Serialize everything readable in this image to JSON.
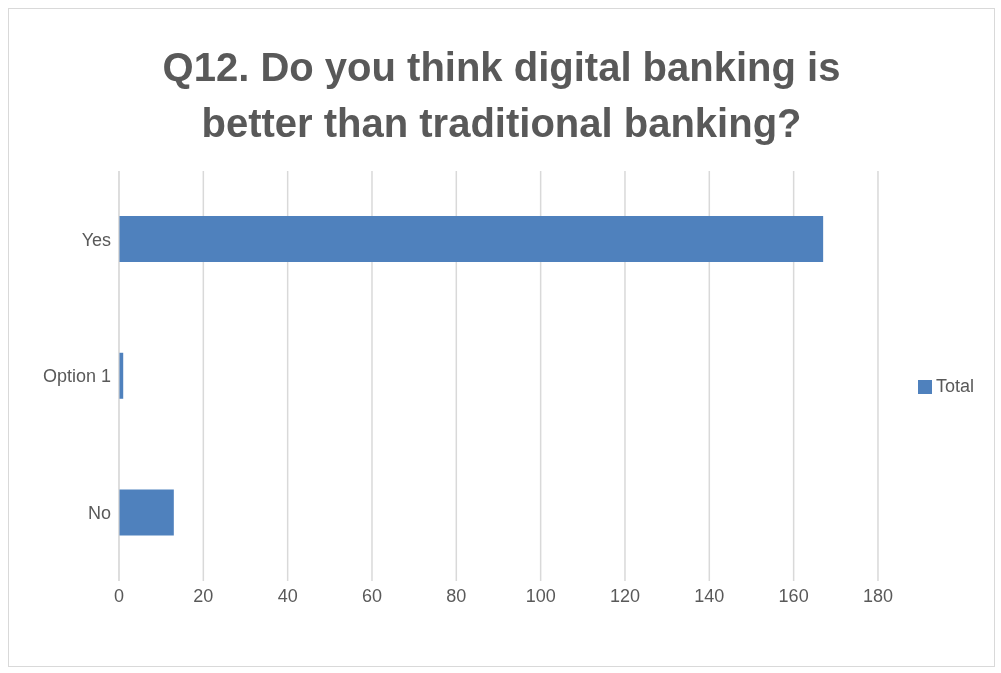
{
  "chart_data": {
    "type": "bar",
    "orientation": "horizontal",
    "title": "Q12. Do you think digital banking is better than traditional banking?",
    "categories": [
      "Yes",
      "Option 1",
      "No"
    ],
    "series": [
      {
        "name": "Total",
        "color": "#4f81bd",
        "values": [
          167,
          1,
          13
        ]
      }
    ],
    "xlim": [
      0,
      180
    ],
    "xticks": [
      0,
      20,
      40,
      60,
      80,
      100,
      120,
      140,
      160,
      180
    ],
    "grid": "x",
    "legend": "right"
  }
}
